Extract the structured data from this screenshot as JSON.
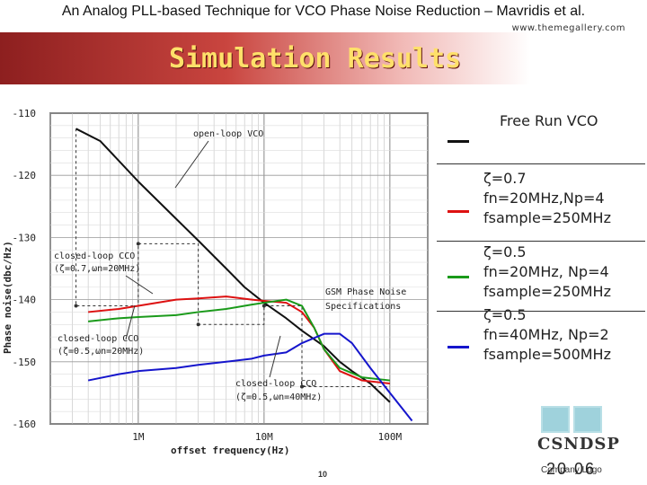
{
  "slide": {
    "top_title": "An Analog PLL-based Technique for VCO Phase Noise Reduction – Mavridis et al.",
    "website": "www.themegallery.com",
    "heading": "Simulation Results",
    "slide_number": "10",
    "date_text": "20  06",
    "logo_text": "CSNDSP",
    "company_logo": "Company Logo"
  },
  "legend": [
    {
      "lines": [
        "Free Run VCO"
      ],
      "color": "#111111"
    },
    {
      "lines": [
        "ζ=0.7",
        " fn=20MHz,Np=4",
        "fsample=250MHz"
      ],
      "color": "#dd1111"
    },
    {
      "lines": [
        "ζ=0.5",
        "fn=20MHz, Np=4",
        "fsample=250MHz"
      ],
      "color": "#1a9a1a"
    },
    {
      "lines": [
        "ζ=0.5",
        "fn=40MHz, Np=2",
        "fsample=500MHz"
      ],
      "color": "#1515cc"
    }
  ],
  "chart_data": {
    "type": "line",
    "xlabel": "offset frequency(Hz)",
    "ylabel": "Phase noise(dbc/Hz)",
    "x_scale": "log",
    "xlim": [
      200000,
      200000000
    ],
    "ylim": [
      -160,
      -110
    ],
    "x_ticks": [
      1000000,
      10000000,
      100000000
    ],
    "x_tick_labels": [
      "1M",
      "10M",
      "100M"
    ],
    "y_ticks": [
      -110,
      -120,
      -130,
      -140,
      -150,
      -160
    ],
    "y_tick_labels": [
      "-110",
      "-120",
      "-130",
      "-140",
      "-150",
      "-160"
    ],
    "grid": true,
    "series": [
      {
        "name": "open-loop VCO",
        "color": "#111111",
        "x": [
          320000,
          500000,
          1000000,
          2000000,
          3000000,
          5000000,
          7000000,
          10000000,
          15000000,
          20000000,
          30000000,
          40000000,
          50000000,
          70000000,
          100000000
        ],
        "y": [
          -112.5,
          -114.5,
          -121,
          -127,
          -130.5,
          -135,
          -138,
          -140.5,
          -143,
          -145,
          -147.5,
          -150,
          -151.5,
          -153.5,
          -156.5
        ]
      },
      {
        "name": "closed-loop CCO (ζ=0.7, ωn=20MHz)",
        "color": "#dd1111",
        "x": [
          400000,
          700000,
          1000000,
          2000000,
          3000000,
          5000000,
          8000000,
          10000000,
          15000000,
          20000000,
          25000000,
          30000000,
          40000000,
          60000000,
          100000000
        ],
        "y": [
          -142,
          -141.5,
          -141,
          -140,
          -139.8,
          -139.5,
          -140,
          -140.2,
          -140.5,
          -142,
          -144.5,
          -148,
          -151.5,
          -153,
          -153.5
        ]
      },
      {
        "name": "closed-loop CCO (ζ=0.5, ωn=20MHz)",
        "color": "#1a9a1a",
        "x": [
          400000,
          700000,
          1000000,
          2000000,
          3000000,
          5000000,
          8000000,
          10000000,
          15000000,
          20000000,
          25000000,
          30000000,
          40000000,
          60000000,
          100000000
        ],
        "y": [
          -143.5,
          -143,
          -142.8,
          -142.5,
          -142,
          -141.5,
          -140.8,
          -140.5,
          -140,
          -141,
          -144.5,
          -148,
          -151,
          -152.5,
          -153
        ]
      },
      {
        "name": "closed-loop CCO (ζ=0.5, ωn=40MHz)",
        "color": "#1515cc",
        "x": [
          400000,
          700000,
          1000000,
          2000000,
          3000000,
          5000000,
          8000000,
          10000000,
          15000000,
          20000000,
          30000000,
          40000000,
          50000000,
          70000000,
          100000000,
          150000000
        ],
        "y": [
          -153,
          -152,
          -151.5,
          -151,
          -150.5,
          -150,
          -149.5,
          -149,
          -148.5,
          -147,
          -145.5,
          -145.5,
          -147,
          -151,
          -155,
          -159.5
        ]
      }
    ],
    "annotations": [
      {
        "text": "open-loop VCO"
      },
      {
        "text": "closed-loop CCO"
      },
      {
        "text": "(ζ=0.7,ωn=20MHz)"
      },
      {
        "text": "closed-loop CCO"
      },
      {
        "text": "(ζ=0.5,ωn=20MHz)"
      },
      {
        "text": "closed-loop CCO"
      },
      {
        "text": "(ζ=0.5,ωn=40MHz)"
      },
      {
        "text": "GSM Phase Noise"
      },
      {
        "text": "Specifications"
      }
    ],
    "gsm_spec": {
      "x": [
        320000,
        320000,
        1000000,
        1000000,
        3000000,
        3000000,
        10000000,
        10000000,
        20000000,
        20000000,
        100000000
      ],
      "y": [
        -112.5,
        -141,
        -141,
        -131,
        -131,
        -144,
        -144,
        -141,
        -141,
        -154,
        -154
      ]
    }
  }
}
